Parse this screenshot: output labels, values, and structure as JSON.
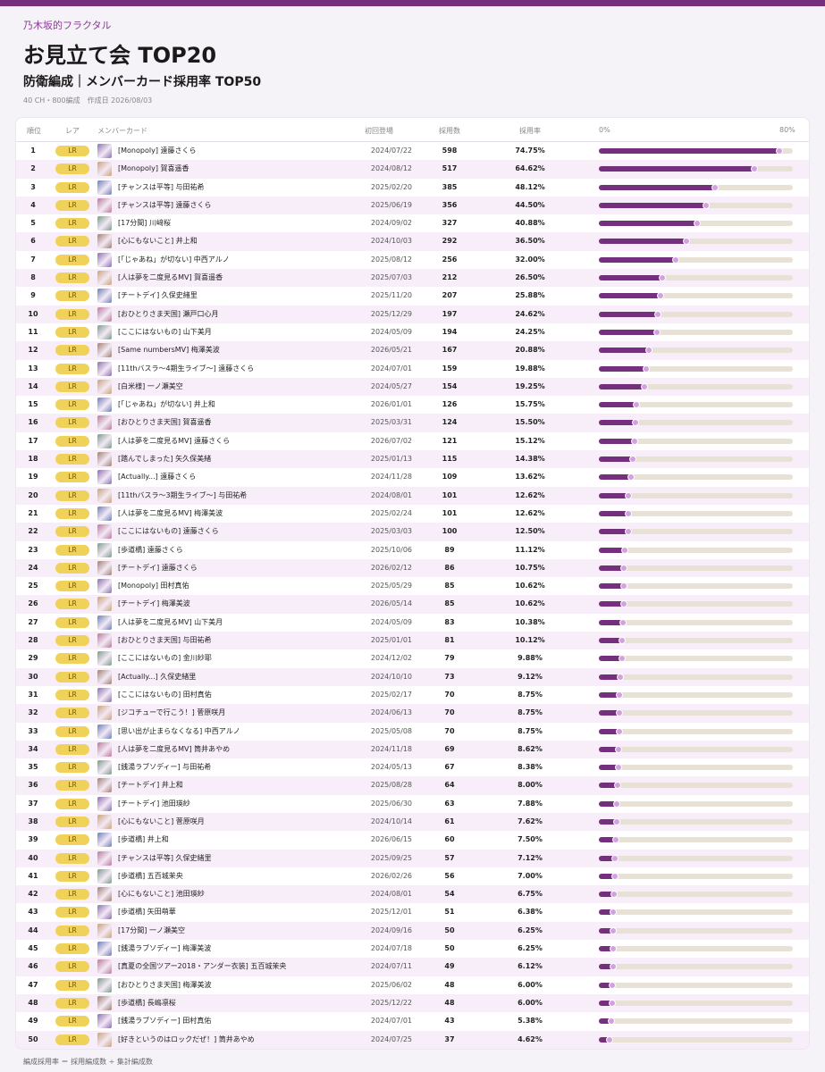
{
  "header": {
    "site": "乃木坂的フラクタル",
    "title": "お見立て会 TOP20",
    "subtitle": "防衛編成｜メンバーカード採用率 TOP50",
    "meta": "40 CH・800編成　作成日 2026/08/03"
  },
  "table": {
    "columns": {
      "rank": "順位",
      "rarity": "レア",
      "card": "メンバーカード",
      "first": "初回登場",
      "count": "採用数",
      "rate": "採用率",
      "scale_min": "0%",
      "scale_max": "80%"
    },
    "scale_max_percent": 80,
    "rows": [
      {
        "rank": "1",
        "rarity": "LR",
        "card": "[Monopoly] 遠藤さくら",
        "first": "2024/07/22",
        "count": "598",
        "rate": "74.75%",
        "rate_value": 74.75
      },
      {
        "rank": "2",
        "rarity": "LR",
        "card": "[Monopoly] 賀喜遥香",
        "first": "2024/08/12",
        "count": "517",
        "rate": "64.62%",
        "rate_value": 64.62
      },
      {
        "rank": "3",
        "rarity": "LR",
        "card": "[チャンスは平等] 与田祐希",
        "first": "2025/02/20",
        "count": "385",
        "rate": "48.12%",
        "rate_value": 48.12
      },
      {
        "rank": "4",
        "rarity": "LR",
        "card": "[チャンスは平等] 遠藤さくら",
        "first": "2025/06/19",
        "count": "356",
        "rate": "44.50%",
        "rate_value": 44.5
      },
      {
        "rank": "5",
        "rarity": "LR",
        "card": "[17分間] 川﨑桜",
        "first": "2024/09/02",
        "count": "327",
        "rate": "40.88%",
        "rate_value": 40.88
      },
      {
        "rank": "6",
        "rarity": "LR",
        "card": "[心にもないこと] 井上和",
        "first": "2024/10/03",
        "count": "292",
        "rate": "36.50%",
        "rate_value": 36.5
      },
      {
        "rank": "7",
        "rarity": "LR",
        "card": "[「じゃあね」が切ない] 中西アルノ",
        "first": "2025/08/12",
        "count": "256",
        "rate": "32.00%",
        "rate_value": 32.0
      },
      {
        "rank": "8",
        "rarity": "LR",
        "card": "[人は夢を二度見るMV] 賀喜遥香",
        "first": "2025/07/03",
        "count": "212",
        "rate": "26.50%",
        "rate_value": 26.5
      },
      {
        "rank": "9",
        "rarity": "LR",
        "card": "[チートデイ] 久保史緒里",
        "first": "2025/11/20",
        "count": "207",
        "rate": "25.88%",
        "rate_value": 25.88
      },
      {
        "rank": "10",
        "rarity": "LR",
        "card": "[おひとりさま天国] 瀬戸口心月",
        "first": "2025/12/29",
        "count": "197",
        "rate": "24.62%",
        "rate_value": 24.62
      },
      {
        "rank": "11",
        "rarity": "LR",
        "card": "[ここにはないもの] 山下美月",
        "first": "2024/05/09",
        "count": "194",
        "rate": "24.25%",
        "rate_value": 24.25
      },
      {
        "rank": "12",
        "rarity": "LR",
        "card": "[Same numbersMV] 梅澤美波",
        "first": "2026/05/21",
        "count": "167",
        "rate": "20.88%",
        "rate_value": 20.88
      },
      {
        "rank": "13",
        "rarity": "LR",
        "card": "[11thバスラ～4期生ライブ～] 遠藤さくら",
        "first": "2024/07/01",
        "count": "159",
        "rate": "19.88%",
        "rate_value": 19.88
      },
      {
        "rank": "14",
        "rarity": "LR",
        "card": "[白米様] 一ノ瀬美空",
        "first": "2024/05/27",
        "count": "154",
        "rate": "19.25%",
        "rate_value": 19.25
      },
      {
        "rank": "15",
        "rarity": "LR",
        "card": "[「じゃあね」が切ない] 井上和",
        "first": "2026/01/01",
        "count": "126",
        "rate": "15.75%",
        "rate_value": 15.75
      },
      {
        "rank": "16",
        "rarity": "LR",
        "card": "[おひとりさま天国] 賀喜遥香",
        "first": "2025/03/31",
        "count": "124",
        "rate": "15.50%",
        "rate_value": 15.5
      },
      {
        "rank": "17",
        "rarity": "LR",
        "card": "[人は夢を二度見るMV] 遠藤さくら",
        "first": "2026/07/02",
        "count": "121",
        "rate": "15.12%",
        "rate_value": 15.12
      },
      {
        "rank": "18",
        "rarity": "LR",
        "card": "[踏んでしまった] 矢久保美緒",
        "first": "2025/01/13",
        "count": "115",
        "rate": "14.38%",
        "rate_value": 14.38
      },
      {
        "rank": "19",
        "rarity": "LR",
        "card": "[Actually...] 遠藤さくら",
        "first": "2024/11/28",
        "count": "109",
        "rate": "13.62%",
        "rate_value": 13.62
      },
      {
        "rank": "20",
        "rarity": "LR",
        "card": "[11thバスラ～3期生ライブ～] 与田祐希",
        "first": "2024/08/01",
        "count": "101",
        "rate": "12.62%",
        "rate_value": 12.62
      },
      {
        "rank": "21",
        "rarity": "LR",
        "card": "[人は夢を二度見るMV] 梅澤美波",
        "first": "2025/02/24",
        "count": "101",
        "rate": "12.62%",
        "rate_value": 12.62
      },
      {
        "rank": "22",
        "rarity": "LR",
        "card": "[ここにはないもの] 遠藤さくら",
        "first": "2025/03/03",
        "count": "100",
        "rate": "12.50%",
        "rate_value": 12.5
      },
      {
        "rank": "23",
        "rarity": "LR",
        "card": "[歩道橋] 遠藤さくら",
        "first": "2025/10/06",
        "count": "89",
        "rate": "11.12%",
        "rate_value": 11.12
      },
      {
        "rank": "24",
        "rarity": "LR",
        "card": "[チートデイ] 遠藤さくら",
        "first": "2026/02/12",
        "count": "86",
        "rate": "10.75%",
        "rate_value": 10.75
      },
      {
        "rank": "25",
        "rarity": "LR",
        "card": "[Monopoly] 田村真佑",
        "first": "2025/05/29",
        "count": "85",
        "rate": "10.62%",
        "rate_value": 10.62
      },
      {
        "rank": "26",
        "rarity": "LR",
        "card": "[チートデイ] 梅澤美波",
        "first": "2026/05/14",
        "count": "85",
        "rate": "10.62%",
        "rate_value": 10.62
      },
      {
        "rank": "27",
        "rarity": "LR",
        "card": "[人は夢を二度見るMV] 山下美月",
        "first": "2024/05/09",
        "count": "83",
        "rate": "10.38%",
        "rate_value": 10.38
      },
      {
        "rank": "28",
        "rarity": "LR",
        "card": "[おひとりさま天国] 与田祐希",
        "first": "2025/01/01",
        "count": "81",
        "rate": "10.12%",
        "rate_value": 10.12
      },
      {
        "rank": "29",
        "rarity": "LR",
        "card": "[ここにはないもの] 金川紗耶",
        "first": "2024/12/02",
        "count": "79",
        "rate": "9.88%",
        "rate_value": 9.88
      },
      {
        "rank": "30",
        "rarity": "LR",
        "card": "[Actually...] 久保史緒里",
        "first": "2024/10/10",
        "count": "73",
        "rate": "9.12%",
        "rate_value": 9.12
      },
      {
        "rank": "31",
        "rarity": "LR",
        "card": "[ここにはないもの] 田村真佑",
        "first": "2025/02/17",
        "count": "70",
        "rate": "8.75%",
        "rate_value": 8.75
      },
      {
        "rank": "32",
        "rarity": "LR",
        "card": "[ジコチューで行こう！] 菅原咲月",
        "first": "2024/06/13",
        "count": "70",
        "rate": "8.75%",
        "rate_value": 8.75
      },
      {
        "rank": "33",
        "rarity": "LR",
        "card": "[思い出が止まらなくなる] 中西アルノ",
        "first": "2025/05/08",
        "count": "70",
        "rate": "8.75%",
        "rate_value": 8.75
      },
      {
        "rank": "34",
        "rarity": "LR",
        "card": "[人は夢を二度見るMV] 筒井あやめ",
        "first": "2024/11/18",
        "count": "69",
        "rate": "8.62%",
        "rate_value": 8.62
      },
      {
        "rank": "35",
        "rarity": "LR",
        "card": "[銭湯ラブソディー] 与田祐希",
        "first": "2024/05/13",
        "count": "67",
        "rate": "8.38%",
        "rate_value": 8.38
      },
      {
        "rank": "36",
        "rarity": "LR",
        "card": "[チートデイ] 井上和",
        "first": "2025/08/28",
        "count": "64",
        "rate": "8.00%",
        "rate_value": 8.0
      },
      {
        "rank": "37",
        "rarity": "LR",
        "card": "[チートデイ] 池田瑛紗",
        "first": "2025/06/30",
        "count": "63",
        "rate": "7.88%",
        "rate_value": 7.88
      },
      {
        "rank": "38",
        "rarity": "LR",
        "card": "[心にもないこと] 菅原咲月",
        "first": "2024/10/14",
        "count": "61",
        "rate": "7.62%",
        "rate_value": 7.62
      },
      {
        "rank": "39",
        "rarity": "LR",
        "card": "[歩道橋] 井上和",
        "first": "2026/06/15",
        "count": "60",
        "rate": "7.50%",
        "rate_value": 7.5
      },
      {
        "rank": "40",
        "rarity": "LR",
        "card": "[チャンスは平等] 久保史緒里",
        "first": "2025/09/25",
        "count": "57",
        "rate": "7.12%",
        "rate_value": 7.12
      },
      {
        "rank": "41",
        "rarity": "LR",
        "card": "[歩道橋] 五百城茉央",
        "first": "2026/02/26",
        "count": "56",
        "rate": "7.00%",
        "rate_value": 7.0
      },
      {
        "rank": "42",
        "rarity": "LR",
        "card": "[心にもないこと] 池田瑛紗",
        "first": "2024/08/01",
        "count": "54",
        "rate": "6.75%",
        "rate_value": 6.75
      },
      {
        "rank": "43",
        "rarity": "LR",
        "card": "[歩道橋] 矢田萌華",
        "first": "2025/12/01",
        "count": "51",
        "rate": "6.38%",
        "rate_value": 6.38
      },
      {
        "rank": "44",
        "rarity": "LR",
        "card": "[17分間] 一ノ瀬美空",
        "first": "2024/09/16",
        "count": "50",
        "rate": "6.25%",
        "rate_value": 6.25
      },
      {
        "rank": "45",
        "rarity": "LR",
        "card": "[銭湯ラブソディー] 梅澤美波",
        "first": "2024/07/18",
        "count": "50",
        "rate": "6.25%",
        "rate_value": 6.25
      },
      {
        "rank": "46",
        "rarity": "LR",
        "card": "[真夏の全国ツアー2018・アンダー衣装] 五百城茉央",
        "first": "2024/07/11",
        "count": "49",
        "rate": "6.12%",
        "rate_value": 6.12
      },
      {
        "rank": "47",
        "rarity": "LR",
        "card": "[おひとりさま天国] 梅澤美波",
        "first": "2025/06/02",
        "count": "48",
        "rate": "6.00%",
        "rate_value": 6.0
      },
      {
        "rank": "48",
        "rarity": "LR",
        "card": "[歩道橋] 長嶋凛桜",
        "first": "2025/12/22",
        "count": "48",
        "rate": "6.00%",
        "rate_value": 6.0
      },
      {
        "rank": "49",
        "rarity": "LR",
        "card": "[銭湯ラブソディー] 田村真佑",
        "first": "2024/07/01",
        "count": "43",
        "rate": "5.38%",
        "rate_value": 5.38
      },
      {
        "rank": "50",
        "rarity": "LR",
        "card": "[好きというのはロックだぜ！] 筒井あやめ",
        "first": "2024/07/25",
        "count": "37",
        "rate": "4.62%",
        "rate_value": 4.62
      }
    ]
  },
  "footer": "編成採用率 ＝ 採用編成数 ÷ 集計編成数",
  "colors": {
    "accent": "#74307d",
    "rarity_badge": "#f0d25a",
    "bar_track": "#e7e1d6",
    "bar_dot": "#d4a1e0",
    "row_alt": "#f7eef9"
  }
}
